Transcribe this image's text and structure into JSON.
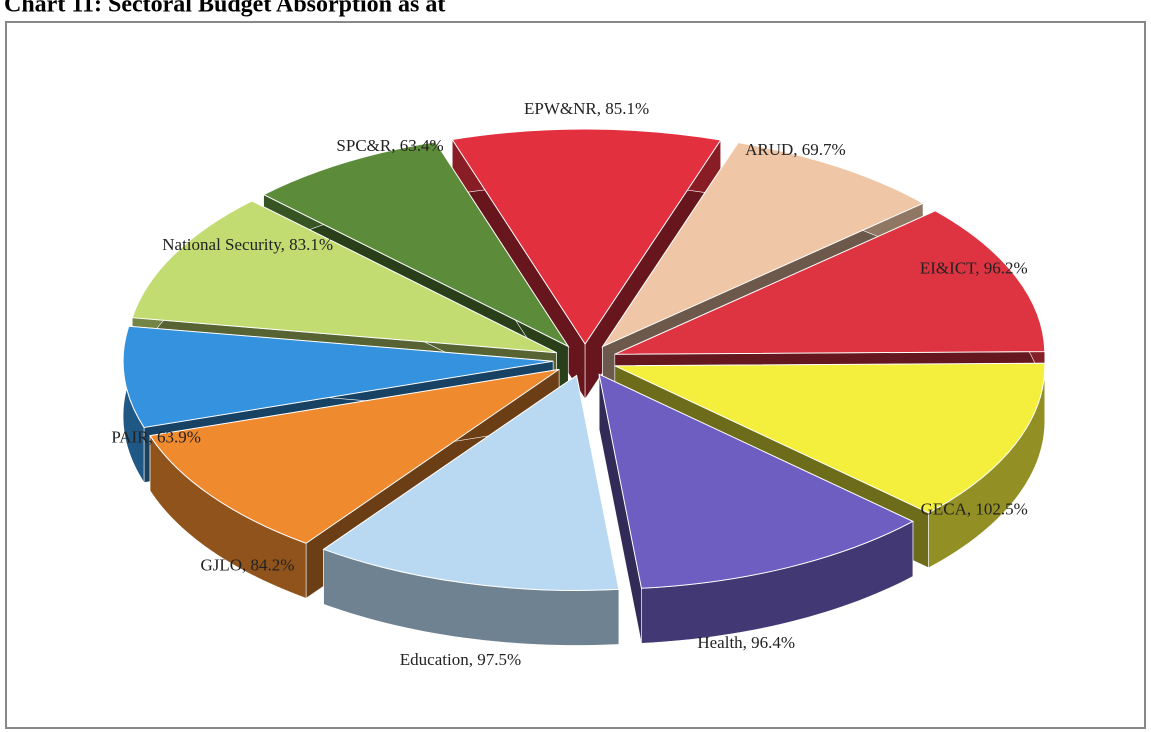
{
  "chart_data": {
    "type": "pie3d",
    "title": "Chart 11: Sectoral Budget Absorption as at",
    "labels": [
      "EPW&NR, 85.1%",
      "ARUD, 69.7%",
      "EI&ICT, 96.2%",
      "GECA, 102.5%",
      "Health, 96.4%",
      "Education, 97.5%",
      "GJLO, 84.2%",
      "PAIR, 63.9%",
      "National Security, 83.1%",
      "SPC&R, 63.4%"
    ],
    "values": [
      85.1,
      69.7,
      96.2,
      102.5,
      96.4,
      97.5,
      84.2,
      63.9,
      83.1,
      63.4
    ],
    "colors": [
      "#e2303e",
      "#efc6a6",
      "#de3442",
      "#f3ef3c",
      "#6e5ec2",
      "#b9d9f2",
      "#f08a2e",
      "#3592de",
      "#c2dc72",
      "#5c8c3a"
    ]
  }
}
